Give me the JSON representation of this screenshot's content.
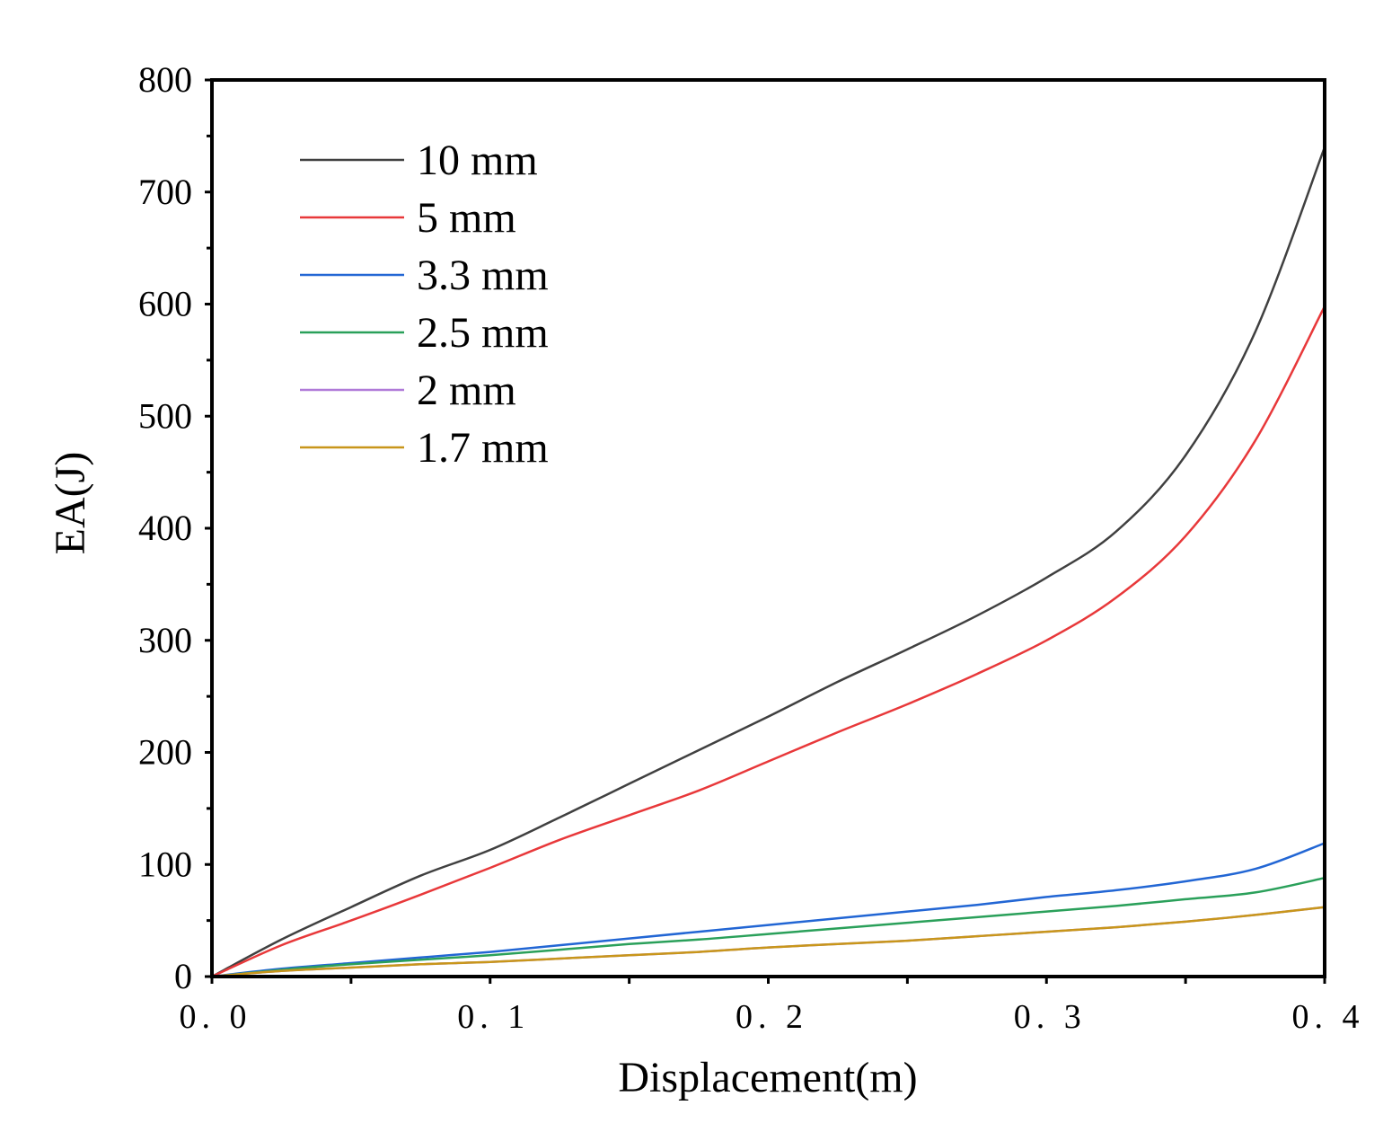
{
  "chart_data": {
    "type": "line",
    "title": "",
    "xlabel": "Displacement(m)",
    "ylabel": "EA(J)",
    "xlim": [
      0,
      0.4
    ],
    "ylim": [
      0,
      800
    ],
    "x_ticks": [
      0,
      0.1,
      0.2,
      0.3,
      0.4
    ],
    "x_tick_labels": [
      "0. 0",
      "0. 1",
      "0. 2",
      "0. 3",
      "0. 4"
    ],
    "y_ticks": [
      0,
      100,
      200,
      300,
      400,
      500,
      600,
      700,
      800
    ],
    "y_tick_labels": [
      "0",
      "100",
      "200",
      "300",
      "400",
      "500",
      "600",
      "700",
      "800"
    ],
    "grid": false,
    "legend_position": "top-left",
    "x": [
      0,
      0.025,
      0.05,
      0.075,
      0.1,
      0.125,
      0.15,
      0.175,
      0.2,
      0.225,
      0.25,
      0.275,
      0.3,
      0.325,
      0.35,
      0.375,
      0.4
    ],
    "series": [
      {
        "name": "10 mm",
        "color": "#404040",
        "values": [
          0,
          33,
          62,
          90,
          113,
          142,
          172,
          202,
          232,
          263,
          292,
          322,
          356,
          397,
          465,
          575,
          740
        ]
      },
      {
        "name": "5 mm",
        "color": "#e8383a",
        "values": [
          0,
          28,
          50,
          73,
          97,
          122,
          144,
          166,
          192,
          218,
          243,
          270,
          300,
          338,
          393,
          478,
          598
        ]
      },
      {
        "name": "3.3 mm",
        "color": "#2266d4",
        "values": [
          0,
          7,
          12,
          17,
          22,
          28,
          34,
          40,
          46,
          52,
          58,
          64,
          71,
          77,
          85,
          96,
          119
        ]
      },
      {
        "name": "2.5 mm",
        "color": "#2aa05a",
        "values": [
          0,
          6,
          11,
          15,
          19,
          24,
          29,
          33,
          38,
          43,
          48,
          53,
          58,
          63,
          69,
          75,
          88
        ]
      },
      {
        "name": "2 mm",
        "color": "#b07ad8",
        "values": [
          0,
          5,
          8,
          11,
          13,
          16,
          19,
          22,
          26,
          29,
          32,
          36,
          40,
          44,
          49,
          55,
          62
        ]
      },
      {
        "name": "1.7 mm",
        "color": "#c8961a",
        "values": [
          0,
          5,
          8,
          11,
          13,
          16,
          19,
          22,
          26,
          29,
          32,
          36,
          40,
          44,
          49,
          55,
          62
        ]
      }
    ]
  }
}
